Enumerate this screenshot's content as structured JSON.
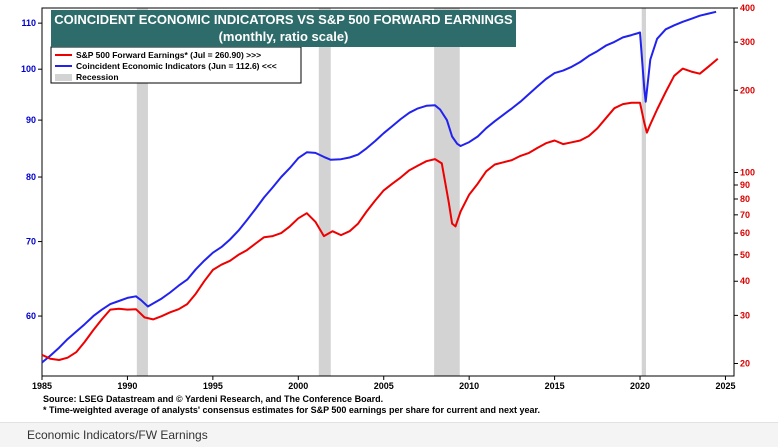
{
  "chart_data": {
    "type": "line",
    "title": "COINCIDENT ECONOMIC  INDICATORS VS S&P 500 FORWARD EARNINGS",
    "subtitle": "(monthly, ratio scale)",
    "x_ticks": [
      "1985",
      "1990",
      "1995",
      "2000",
      "2005",
      "2010",
      "2015",
      "2020",
      "2025"
    ],
    "xlim": [
      1985,
      2025.5
    ],
    "left_axis": {
      "ticks": [
        "60",
        "70",
        "80",
        "90",
        "100",
        "110"
      ],
      "ylim": [
        53,
        113.5
      ],
      "scale": "log",
      "color": "#0000cc"
    },
    "right_axis": {
      "ticks": [
        "20",
        "30",
        "40",
        "50",
        "60",
        "70",
        "80",
        "90",
        "100",
        "200",
        "300",
        "400"
      ],
      "ylim": [
        18,
        400
      ],
      "scale": "log",
      "color": "#dd0000"
    },
    "legend": {
      "position": "top-left",
      "entries": [
        {
          "label": "S&P 500 Forward Earnings* (Jul = 260.90) >>>",
          "color": "#ee0000"
        },
        {
          "label": "Coincident Economic Indicators (Jun = 112.6) <<<",
          "color": "#2222ee"
        },
        {
          "label": "Recession",
          "color": "#d3d3d3"
        }
      ]
    },
    "recessions": [
      [
        1990.55,
        1991.2
      ],
      [
        2001.2,
        2001.9
      ],
      [
        2007.95,
        2009.45
      ],
      [
        2020.1,
        2020.35
      ]
    ],
    "series": [
      {
        "name": "Coincident Economic Indicators",
        "axis": "left",
        "color": "#2222ee",
        "x": [
          1985,
          1985.5,
          1986,
          1986.5,
          1987,
          1987.5,
          1988,
          1988.5,
          1989,
          1989.5,
          1990,
          1990.5,
          1990.8,
          1991.2,
          1991.6,
          1992,
          1992.5,
          1993,
          1993.5,
          1994,
          1994.5,
          1995,
          1995.5,
          1996,
          1996.5,
          1997,
          1997.5,
          1998,
          1998.5,
          1999,
          1999.5,
          2000,
          2000.5,
          2001,
          2001.5,
          2001.9,
          2002.5,
          2003,
          2003.5,
          2004,
          2004.5,
          2005,
          2005.5,
          2006,
          2006.5,
          2007,
          2007.5,
          2008,
          2008.3,
          2008.7,
          2009,
          2009.3,
          2009.5,
          2010,
          2010.5,
          2011,
          2011.5,
          2012,
          2012.5,
          2013,
          2013.5,
          2014,
          2014.5,
          2015,
          2015.5,
          2016,
          2016.5,
          2017,
          2017.5,
          2018,
          2018.5,
          2019,
          2019.5,
          2020,
          2020.25,
          2020.33,
          2020.6,
          2021,
          2021.5,
          2022,
          2022.5,
          2023,
          2023.5,
          2024,
          2024.45
        ],
        "values": [
          54.5,
          55.3,
          56.2,
          57.2,
          58.1,
          59.0,
          60.0,
          60.8,
          61.5,
          61.9,
          62.3,
          62.5,
          62.0,
          61.2,
          61.7,
          62.2,
          63.0,
          63.9,
          64.7,
          66.1,
          67.3,
          68.4,
          69.2,
          70.3,
          71.6,
          73.2,
          74.9,
          76.7,
          78.3,
          80.0,
          81.5,
          83.2,
          84.2,
          84.1,
          83.4,
          82.9,
          83.0,
          83.3,
          83.8,
          84.9,
          86.2,
          87.6,
          88.9,
          90.2,
          91.4,
          92.2,
          92.7,
          92.8,
          92.0,
          90.0,
          87.0,
          85.7,
          85.3,
          86.0,
          87.0,
          88.5,
          89.8,
          91.0,
          92.2,
          93.5,
          95.0,
          96.5,
          98.0,
          99.2,
          99.7,
          100.5,
          101.5,
          102.8,
          103.8,
          105.0,
          105.8,
          106.8,
          107.3,
          107.9,
          96.0,
          93.5,
          102.0,
          106.5,
          108.6,
          109.5,
          110.3,
          111.0,
          111.7,
          112.2,
          112.6
        ]
      },
      {
        "name": "S&P 500 Forward Earnings",
        "axis": "right",
        "color": "#ee0000",
        "x": [
          1985,
          1985.5,
          1986,
          1986.5,
          1987,
          1987.5,
          1988,
          1988.5,
          1989,
          1989.5,
          1990,
          1990.5,
          1991,
          1991.5,
          1992,
          1992.5,
          1993,
          1993.5,
          1994,
          1994.5,
          1995,
          1995.5,
          1996,
          1996.5,
          1997,
          1997.5,
          1998,
          1998.5,
          1999,
          1999.5,
          2000,
          2000.5,
          2001,
          2001.5,
          2002,
          2002.5,
          2003,
          2003.5,
          2004,
          2004.5,
          2005,
          2005.5,
          2006,
          2006.5,
          2007,
          2007.5,
          2008,
          2008.4,
          2008.8,
          2009,
          2009.2,
          2009.5,
          2010,
          2010.5,
          2011,
          2011.5,
          2012,
          2012.5,
          2013,
          2013.5,
          2014,
          2014.5,
          2015,
          2015.5,
          2016,
          2016.5,
          2017,
          2017.5,
          2018,
          2018.5,
          2019,
          2019.5,
          2020,
          2020.25,
          2020.4,
          2020.6,
          2021,
          2021.5,
          2022,
          2022.5,
          2023,
          2023.5,
          2024,
          2024.55
        ],
        "values": [
          21.5,
          20.8,
          20.6,
          21.0,
          22.0,
          24.0,
          26.5,
          29.0,
          31.5,
          31.7,
          31.5,
          31.6,
          29.5,
          29.0,
          29.8,
          30.8,
          31.6,
          33.0,
          36.0,
          40.0,
          44.0,
          46.0,
          47.5,
          50.0,
          52.0,
          55.0,
          58.0,
          58.5,
          60.0,
          63.5,
          68.0,
          71.0,
          66.0,
          58.5,
          61.0,
          59.0,
          61.0,
          65.0,
          72.0,
          79.0,
          86.0,
          91.0,
          96.0,
          102.0,
          106.0,
          110.0,
          112.0,
          108.0,
          78.0,
          65.0,
          63.5,
          72.0,
          83.0,
          91.0,
          101.0,
          107.0,
          109.0,
          111.0,
          115.0,
          118.0,
          123.0,
          128.0,
          131.0,
          127.0,
          129.0,
          131.0,
          136.0,
          145.0,
          158.0,
          172.0,
          178.0,
          180.0,
          180.0,
          152.0,
          140.0,
          150.0,
          170.0,
          197.0,
          226.0,
          240.0,
          234.0,
          230.0,
          244.0,
          261.0
        ]
      }
    ]
  },
  "source_text": "Source: LSEG Datastream and © Yardeni Research, and The Conference Board.",
  "footnote_text": "* Time-weighted average of analysts' consensus estimates for S&P 500 earnings per share for current and next year.",
  "caption": "Economic Indicators/FW Earnings"
}
